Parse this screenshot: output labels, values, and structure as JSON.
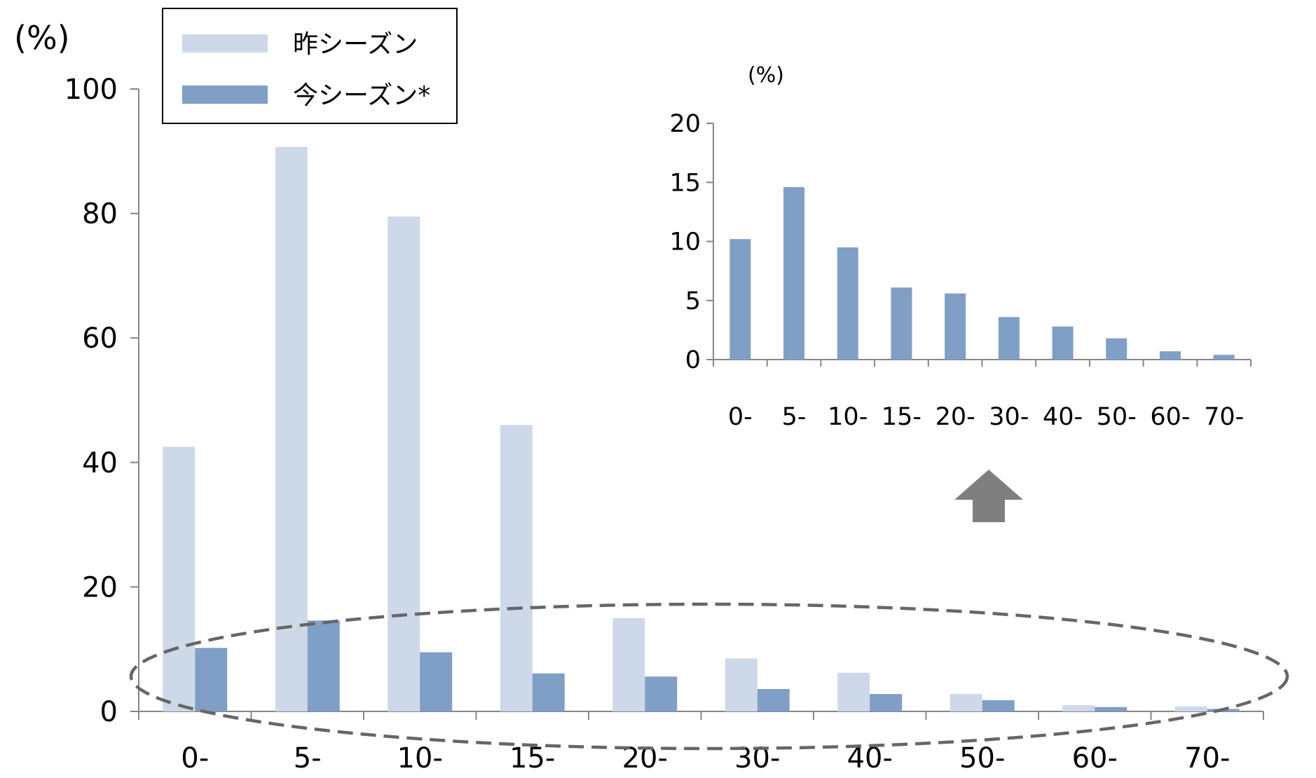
{
  "chart_data": [
    {
      "type": "bar",
      "unit_label": "(%)",
      "categories": [
        "0-",
        "5-",
        "10-",
        "15-",
        "20-",
        "30-",
        "40-",
        "50-",
        "60-",
        "70-"
      ],
      "yticks": [
        "0",
        "20",
        "40",
        "60",
        "80",
        "100"
      ],
      "ylim": [
        0,
        100
      ],
      "grid": false,
      "legend_position": "top-left",
      "series": [
        {
          "name": "昨シーズン",
          "values": [
            42.5,
            90.7,
            79.5,
            46.0,
            15.0,
            8.5,
            6.2,
            2.8,
            1.0,
            0.8
          ],
          "color": "#cdd9e8"
        },
        {
          "name": "今シーズン*",
          "values": [
            10.2,
            14.6,
            9.5,
            6.1,
            5.6,
            3.6,
            2.8,
            1.8,
            0.7,
            0.4
          ],
          "color": "#7f9fc6"
        }
      ]
    },
    {
      "type": "bar",
      "unit_label": "(%)",
      "categories": [
        "0-",
        "5-",
        "10-",
        "15-",
        "20-",
        "30-",
        "40-",
        "50-",
        "60-",
        "70-"
      ],
      "yticks": [
        "0",
        "5",
        "10",
        "15",
        "20"
      ],
      "ylim": [
        0,
        20
      ],
      "grid": false,
      "series": [
        {
          "values": [
            10.2,
            14.6,
            9.5,
            6.1,
            5.6,
            3.6,
            2.8,
            1.8,
            0.7,
            0.4
          ],
          "color": "#7f9fc6"
        }
      ]
    }
  ],
  "colors": {
    "axis": "#868686",
    "ellipse": "#666666",
    "arrow": "#7f7f7f",
    "legend_border": "#000000"
  },
  "icons": {
    "arrow": "up-arrow-icon"
  }
}
